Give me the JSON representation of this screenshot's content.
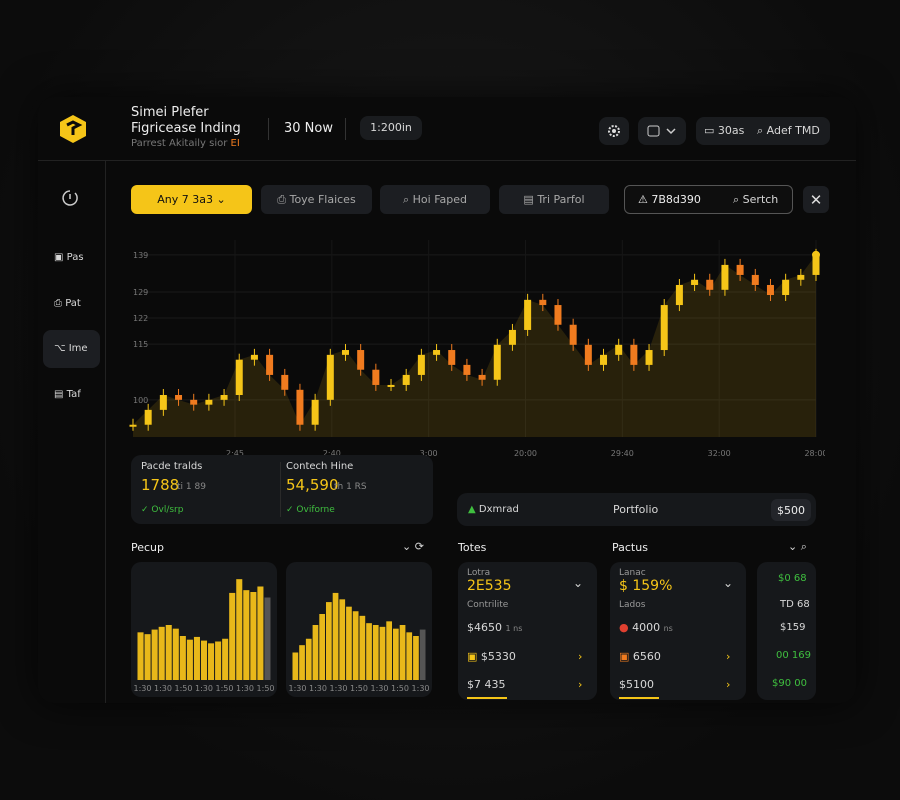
{
  "header": {
    "brand_title": "Simei Plefer",
    "brand_subtitle": "Figricease Inding",
    "brand_note": "Parrest Akitaily sior",
    "brand_badge": "EI",
    "time": "30 Now",
    "range": "1:200in",
    "actions": [
      "30as",
      "Adef TMD"
    ]
  },
  "sidebar": [
    "Pas",
    "Pat",
    "Ime",
    "Taf"
  ],
  "toolbar": {
    "dropdown": "Any 7 3a3",
    "buttons": [
      "Toye Flaices",
      "Hoi Faped",
      "Tri Parfol"
    ],
    "search_value": "7B8d390",
    "search_label": "Sertch"
  },
  "price_chart": {
    "type": "candlestick-area",
    "values": [
      93.3,
      97.3,
      101.3,
      100,
      98.7,
      100,
      101.3,
      110.8,
      112.1,
      106.7,
      102.7,
      93.3,
      100,
      112.1,
      113.4,
      108.1,
      104,
      104,
      106.7,
      112.1,
      113.4,
      109.4,
      106.7,
      105.4,
      114.8,
      118.8,
      126.9,
      125.5,
      120.2,
      114.8,
      109.4,
      112.1,
      114.8,
      109.4,
      113.4,
      125.5,
      130.9,
      132.3,
      129.6,
      136.3,
      133.6,
      130.9,
      128.2,
      132.3,
      133.6,
      139
    ],
    "ylim": [
      90,
      143
    ],
    "yticks": [
      100,
      115,
      122,
      129,
      139
    ],
    "x_labels": [
      "2:45",
      "2:40",
      "3:00",
      "20:00",
      "29:40",
      "32:00",
      "28:00"
    ],
    "color_up": "#f5c518",
    "color_down": "#f07b1f"
  },
  "stats": [
    {
      "label": "Pacde tralds",
      "value": "1788",
      "sub": "ti 1 89",
      "change": "Ovl/srp"
    },
    {
      "label": "Contech Hine",
      "value": "54,590",
      "sub": "th 1 RS",
      "change": "Oviforne"
    }
  ],
  "portfolio_bar": {
    "left": "Dxmrad",
    "center": "Portfolio",
    "value": "$500"
  },
  "pecup": {
    "title": "Pecup",
    "charts": [
      {
        "values": [
          52,
          50,
          55,
          58,
          60,
          56,
          48,
          44,
          47,
          43,
          40,
          42,
          45,
          95,
          110,
          98,
          96,
          102,
          90
        ],
        "ylim": [
          0,
          120
        ],
        "axis_label": "1:30 1:30 1:50 1:30 1:50 1:30 1:50"
      },
      {
        "values": [
          30,
          38,
          45,
          60,
          72,
          85,
          95,
          88,
          80,
          75,
          70,
          62,
          60,
          58,
          64,
          56,
          60,
          52,
          48,
          55
        ],
        "ylim": [
          0,
          120
        ],
        "axis_label": "1:30 1:30 1:30 1:50 1:30 1:50 1:30"
      }
    ]
  },
  "totes": {
    "title": "Totes",
    "tag": "Lotra",
    "value": "2E535",
    "note": "Contrilite",
    "rows": [
      "$4650",
      "$5330",
      "$7 435"
    ],
    "row_note": "1 ns"
  },
  "pactus": {
    "title": "Pactus",
    "tag": "Lanac",
    "value": "$ 159%",
    "note": "Lados",
    "rows": [
      "4000",
      "6560",
      "$5100"
    ],
    "row_note": "ns"
  },
  "right_column": [
    "$0 68",
    "TD 68",
    "$159",
    "00 169",
    "$90 00"
  ]
}
